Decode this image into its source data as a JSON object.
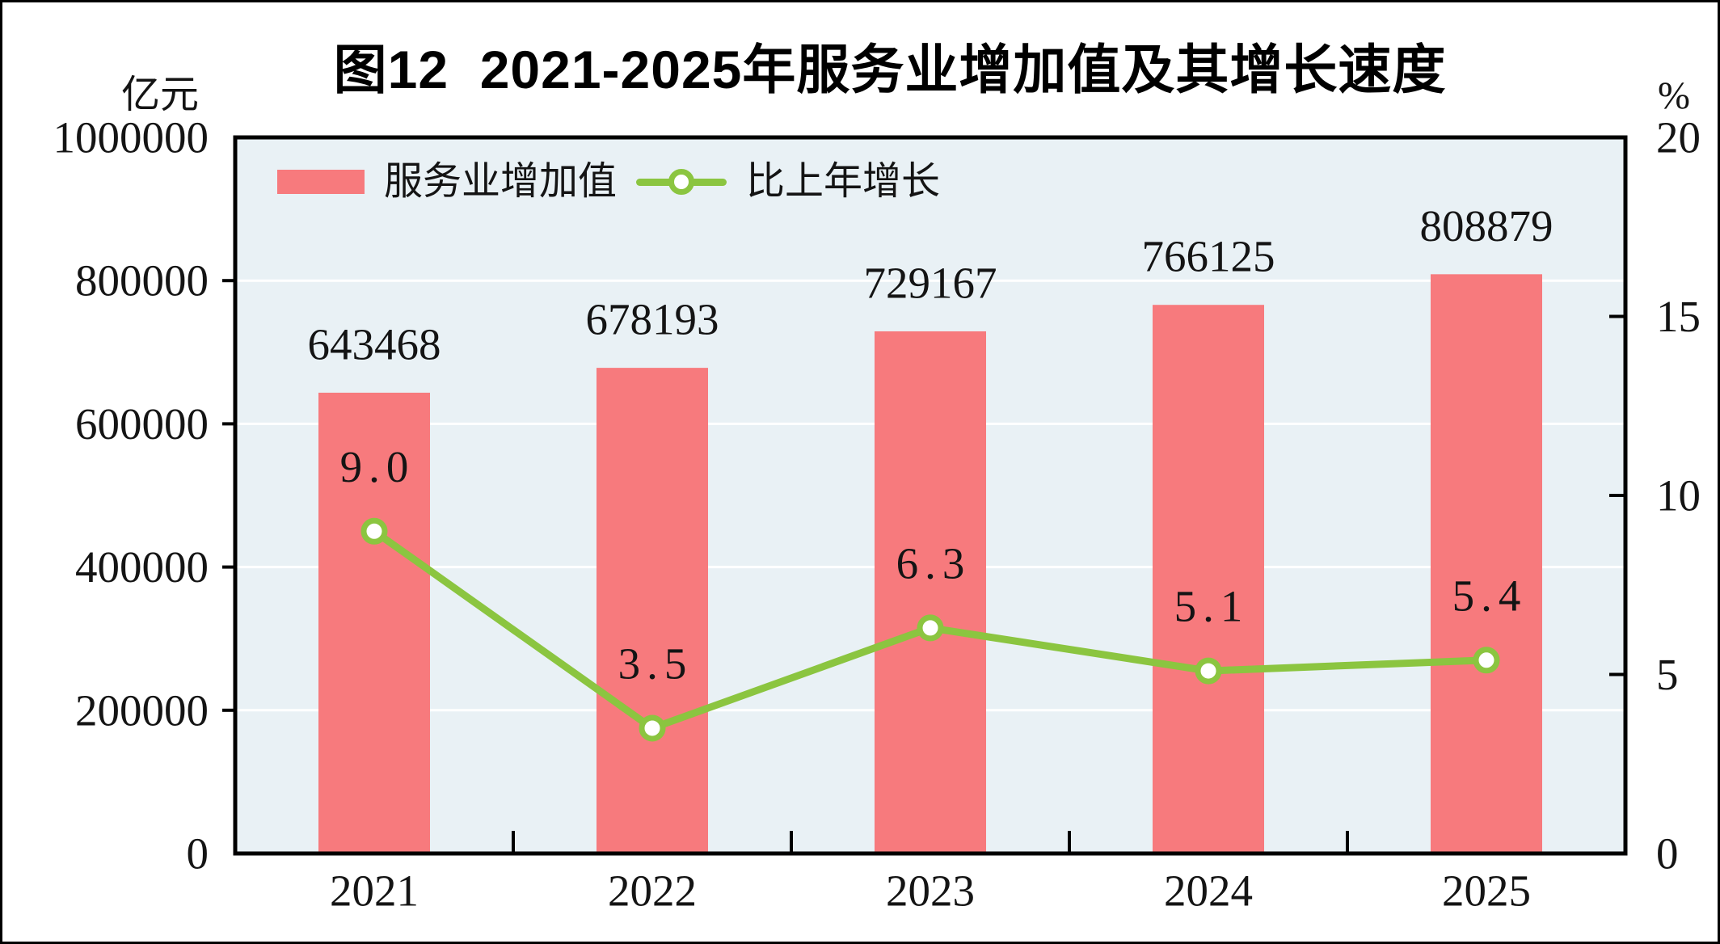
{
  "figure": {
    "title": "图12  2021-2025年服务业增加值及其增长速度",
    "left_unit": "亿元",
    "right_unit": "%"
  },
  "chart_data": {
    "type": "bar",
    "title": "图12  2021-2025年服务业增加值及其增长速度",
    "categories": [
      "2021",
      "2022",
      "2023",
      "2024",
      "2025"
    ],
    "series": [
      {
        "name": "服务业增加值",
        "type": "bar",
        "axis": "left",
        "values": [
          643468,
          678193,
          729167,
          766125,
          808879
        ],
        "labels": [
          "643468",
          "678193",
          "729167",
          "766125",
          "808879"
        ],
        "color": "#f77a7d"
      },
      {
        "name": "比上年增长",
        "type": "line",
        "axis": "right",
        "values": [
          9.0,
          3.5,
          6.3,
          5.1,
          5.4
        ],
        "labels": [
          "9.0",
          "3.5",
          "6.3",
          "5.1",
          "5.4"
        ],
        "color": "#8bc540",
        "marker": "open-circle-white"
      }
    ],
    "left_axis": {
      "unit": "亿元",
      "min": 0,
      "max": 1000000,
      "tick_step": 200000,
      "tick_labels": [
        "0",
        "200000",
        "400000",
        "600000",
        "800000",
        "1000000"
      ]
    },
    "right_axis": {
      "unit": "%",
      "min": 0,
      "max": 20,
      "tick_step": 5,
      "tick_labels": [
        "0",
        "5",
        "10",
        "15",
        "20"
      ]
    },
    "legend_position": "inside-top-left",
    "grid": "horizontal-white",
    "colors": {
      "plot_bg": "#e9f1f5",
      "gridline": "#ffffff",
      "axis": "#000000",
      "text": "#141414"
    }
  }
}
